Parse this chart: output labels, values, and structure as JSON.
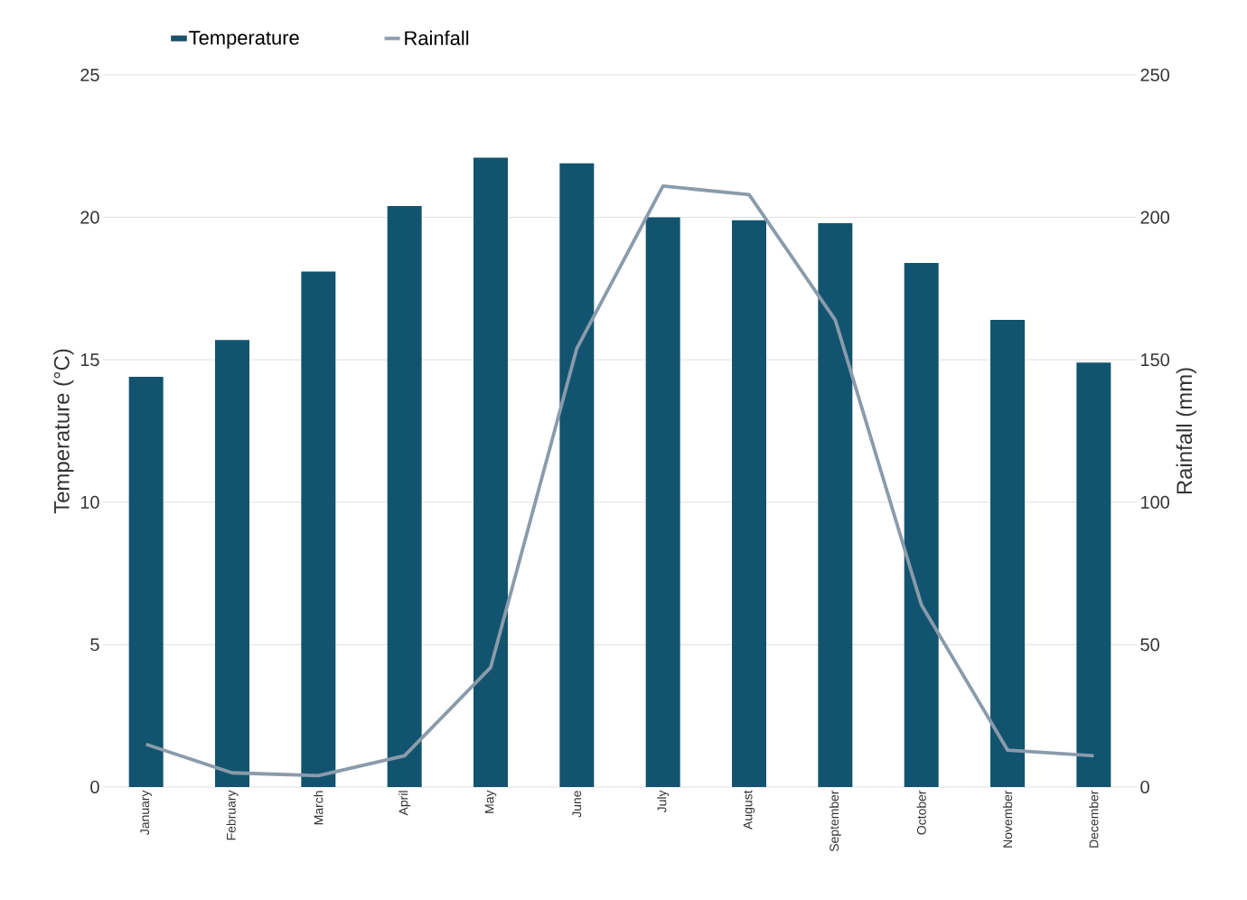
{
  "chart_data": {
    "type": "bar",
    "categories": [
      "January",
      "February",
      "March",
      "April",
      "May",
      "June",
      "July",
      "August",
      "September",
      "October",
      "November",
      "December"
    ],
    "series": [
      {
        "name": "Temperature",
        "color": "#12546f",
        "values": [
          14.4,
          15.7,
          18.1,
          20.4,
          22.1,
          21.9,
          20.0,
          19.9,
          19.8,
          18.4,
          16.4,
          14.9
        ]
      },
      {
        "name": "Rainfall",
        "type": "line",
        "axis": "y2",
        "color": "#8a9bab",
        "values": [
          15,
          5,
          4,
          11,
          42,
          154,
          211,
          208,
          164,
          64,
          13,
          11
        ]
      }
    ],
    "ylabel": "Temperature (°C)",
    "y2label": "Rainfall (mm)",
    "ylim": [
      0,
      25
    ],
    "yticks": [
      0,
      5,
      10,
      15,
      20,
      25
    ],
    "y2lim": [
      0,
      250
    ],
    "y2ticks": [
      0,
      50,
      100,
      150,
      200,
      250
    ],
    "grid": "y",
    "legend": "top"
  }
}
